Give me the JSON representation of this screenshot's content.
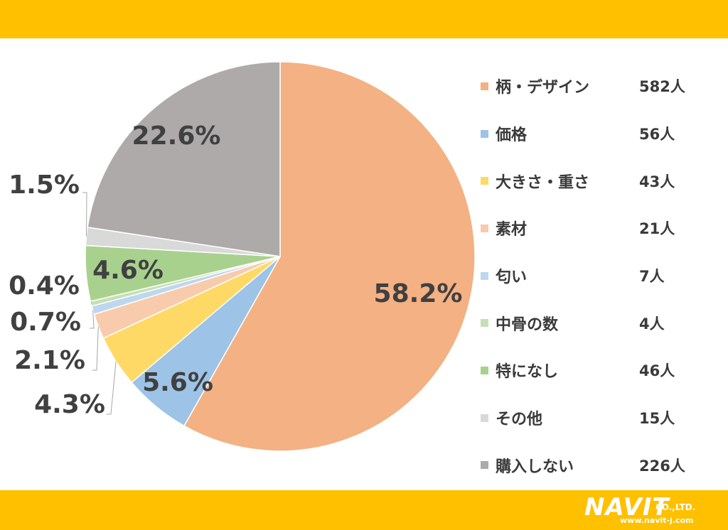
{
  "theme": {
    "band_color": "#FFC000"
  },
  "chart_data": {
    "type": "pie",
    "start_angle_deg": 0,
    "direction": "clockwise",
    "slices": [
      {
        "label": "柄・デザイン",
        "count": "582人",
        "percent": 58.2,
        "pct_label": "58.2%",
        "color": "#F4B183"
      },
      {
        "label": "価格",
        "count": "56人",
        "percent": 5.6,
        "pct_label": "5.6%",
        "color": "#9DC3E6"
      },
      {
        "label": "大きさ・重さ",
        "count": "43人",
        "percent": 4.3,
        "pct_label": "4.3%",
        "color": "#FFD966"
      },
      {
        "label": "素材",
        "count": "21人",
        "percent": 2.1,
        "pct_label": "2.1%",
        "color": "#F8CBAD"
      },
      {
        "label": "匂い",
        "count": "7人",
        "percent": 0.7,
        "pct_label": "0.7%",
        "color": "#BDD7EE"
      },
      {
        "label": "中骨の数",
        "count": "4人",
        "percent": 0.4,
        "pct_label": "0.4%",
        "color": "#C5E0B4"
      },
      {
        "label": "特になし",
        "count": "46人",
        "percent": 4.6,
        "pct_label": "4.6%",
        "color": "#A9D18E"
      },
      {
        "label": "その他",
        "count": "15人",
        "percent": 1.5,
        "pct_label": "1.5%",
        "color": "#D9D9D9"
      },
      {
        "label": "購入しない",
        "count": "226人",
        "percent": 22.6,
        "pct_label": "22.6%",
        "color": "#AEAAAA"
      }
    ],
    "legend_position": "right"
  },
  "logo": {
    "main": "NAVIT",
    "suffix": "CO.,LTD.",
    "url": "www.navit-j.com"
  }
}
